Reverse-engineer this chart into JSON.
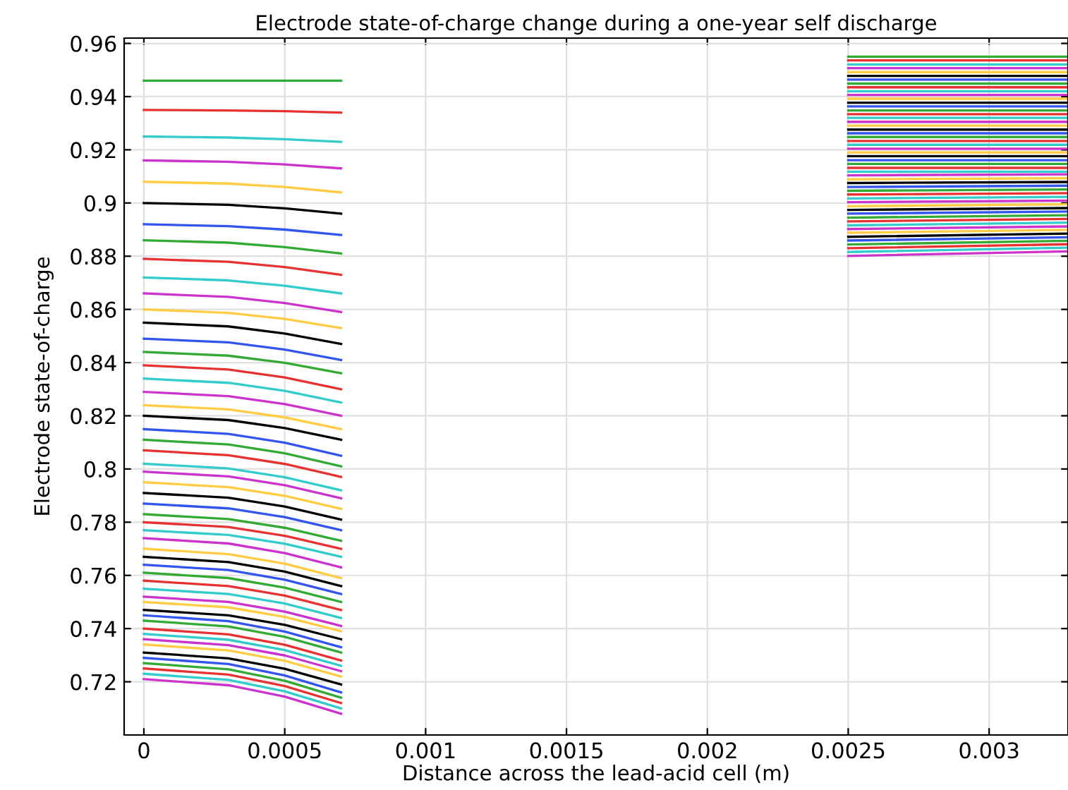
{
  "chart_data": {
    "type": "line",
    "title": "Electrode state-of-charge change during a one-year self discharge",
    "xlabel": "Distance across the lead-acid cell (m)",
    "ylabel": "Electrode state-of-charge",
    "x": [
      0,
      0.0003,
      0.0005,
      0.0007,
      0.0016,
      0.0025,
      0.00328
    ],
    "xlim": [
      -7e-05,
      0.00328
    ],
    "xticks": [
      0,
      0.0005,
      0.001,
      0.0015,
      0.002,
      0.0025,
      0.003
    ],
    "ylim": [
      0.7,
      0.962
    ],
    "yticks": [
      0.72,
      0.74,
      0.76,
      0.78,
      0.8,
      0.82,
      0.84,
      0.86,
      0.88,
      0.9,
      0.92,
      0.94,
      0.96
    ],
    "grid": true,
    "marker": "none",
    "line_style": "solid",
    "series": [
      {
        "color": "#33aa33",
        "values": [
          0.946,
          0.946,
          0.946,
          0.946,
          null,
          0.955,
          0.955
        ]
      },
      {
        "color": "#e83232",
        "values": [
          0.935,
          0.9348,
          0.9345,
          0.934,
          null,
          0.9536,
          0.9536
        ]
      },
      {
        "color": "#33cccc",
        "values": [
          0.925,
          0.9246,
          0.924,
          0.923,
          null,
          0.9521,
          0.9521
        ]
      },
      {
        "color": "#cc33cc",
        "values": [
          0.916,
          0.9155,
          0.9145,
          0.913,
          null,
          0.9507,
          0.9507
        ]
      },
      {
        "color": "#ffcc44",
        "values": [
          0.908,
          0.9073,
          0.906,
          0.904,
          null,
          0.9492,
          0.9492
        ]
      },
      {
        "color": "#000000",
        "values": [
          0.9,
          0.8993,
          0.898,
          0.896,
          null,
          0.9478,
          0.9478
        ]
      },
      {
        "color": "#3355ee",
        "values": [
          0.892,
          0.8913,
          0.89,
          0.888,
          null,
          0.9464,
          0.9464
        ]
      },
      {
        "color": "#33aa33",
        "values": [
          0.886,
          0.8851,
          0.8834,
          0.881,
          null,
          0.9449,
          0.9449
        ]
      },
      {
        "color": "#e83232",
        "values": [
          0.879,
          0.8779,
          0.8759,
          0.873,
          null,
          0.9435,
          0.9435
        ]
      },
      {
        "color": "#33cccc",
        "values": [
          0.872,
          0.8709,
          0.8689,
          0.866,
          null,
          0.942,
          0.942
        ]
      },
      {
        "color": "#cc33cc",
        "values": [
          0.866,
          0.8647,
          0.8624,
          0.859,
          null,
          0.9406,
          0.9406
        ]
      },
      {
        "color": "#ffcc44",
        "values": [
          0.86,
          0.8587,
          0.8564,
          0.853,
          null,
          0.9392,
          0.9392
        ]
      },
      {
        "color": "#000000",
        "values": [
          0.855,
          0.8536,
          0.8509,
          0.847,
          null,
          0.9377,
          0.9377
        ]
      },
      {
        "color": "#3355ee",
        "values": [
          0.849,
          0.8476,
          0.8449,
          0.841,
          null,
          0.9363,
          0.9363
        ]
      },
      {
        "color": "#33aa33",
        "values": [
          0.844,
          0.8426,
          0.8399,
          0.836,
          null,
          0.9348,
          0.9348
        ]
      },
      {
        "color": "#e83232",
        "values": [
          0.839,
          0.8374,
          0.8344,
          0.83,
          null,
          0.9334,
          0.9334
        ]
      },
      {
        "color": "#33cccc",
        "values": [
          0.834,
          0.8324,
          0.8294,
          0.825,
          null,
          0.932,
          0.932
        ]
      },
      {
        "color": "#cc33cc",
        "values": [
          0.829,
          0.8274,
          0.8244,
          0.82,
          null,
          0.9305,
          0.9305
        ]
      },
      {
        "color": "#ffcc44",
        "values": [
          0.824,
          0.8224,
          0.8194,
          0.815,
          null,
          0.9291,
          0.9291
        ]
      },
      {
        "color": "#000000",
        "values": [
          0.82,
          0.8184,
          0.8154,
          0.811,
          null,
          0.9276,
          0.9276
        ]
      },
      {
        "color": "#3355ee",
        "values": [
          0.815,
          0.8132,
          0.8099,
          0.805,
          null,
          0.9262,
          0.9262
        ]
      },
      {
        "color": "#33aa33",
        "values": [
          0.811,
          0.8092,
          0.8059,
          0.801,
          null,
          0.9248,
          0.9248
        ]
      },
      {
        "color": "#e83232",
        "values": [
          0.807,
          0.8052,
          0.8019,
          0.797,
          null,
          0.9233,
          0.9233
        ]
      },
      {
        "color": "#33cccc",
        "values": [
          0.802,
          0.8002,
          0.7969,
          0.792,
          null,
          0.9219,
          0.9219
        ]
      },
      {
        "color": "#cc33cc",
        "values": [
          0.799,
          0.7972,
          0.7939,
          0.789,
          null,
          0.9204,
          0.9204
        ]
      },
      {
        "color": "#ffcc44",
        "values": [
          0.795,
          0.7932,
          0.7899,
          0.785,
          null,
          0.919,
          0.919
        ]
      },
      {
        "color": "#000000",
        "values": [
          0.791,
          0.7892,
          0.7859,
          0.781,
          null,
          0.9176,
          0.9176
        ]
      },
      {
        "color": "#3355ee",
        "values": [
          0.787,
          0.7852,
          0.7819,
          0.777,
          null,
          0.9161,
          0.9161
        ]
      },
      {
        "color": "#33aa33",
        "values": [
          0.783,
          0.7812,
          0.7779,
          0.773,
          null,
          0.9147,
          0.9147
        ]
      },
      {
        "color": "#e83232",
        "values": [
          0.78,
          0.7782,
          0.7749,
          0.77,
          null,
          0.9132,
          0.9132
        ]
      },
      {
        "color": "#33cccc",
        "values": [
          0.777,
          0.7752,
          0.7719,
          0.767,
          null,
          0.9118,
          0.9118
        ]
      },
      {
        "color": "#cc33cc",
        "values": [
          0.774,
          0.772,
          0.7684,
          0.763,
          null,
          0.9104,
          0.9108
        ]
      },
      {
        "color": "#ffcc44",
        "values": [
          0.77,
          0.768,
          0.7644,
          0.759,
          null,
          0.9089,
          0.9093
        ]
      },
      {
        "color": "#000000",
        "values": [
          0.767,
          0.765,
          0.7614,
          0.756,
          null,
          0.9075,
          0.9079
        ]
      },
      {
        "color": "#3355ee",
        "values": [
          0.764,
          0.762,
          0.7584,
          0.753,
          null,
          0.906,
          0.9065
        ]
      },
      {
        "color": "#33aa33",
        "values": [
          0.761,
          0.759,
          0.7554,
          0.75,
          null,
          0.9046,
          0.9051
        ]
      },
      {
        "color": "#e83232",
        "values": [
          0.758,
          0.756,
          0.7524,
          0.747,
          null,
          0.9032,
          0.9037
        ]
      },
      {
        "color": "#33cccc",
        "values": [
          0.755,
          0.753,
          0.7494,
          0.744,
          null,
          0.9017,
          0.9023
        ]
      },
      {
        "color": "#cc33cc",
        "values": [
          0.752,
          0.75,
          0.7464,
          0.741,
          null,
          0.9003,
          0.9009
        ]
      },
      {
        "color": "#ffcc44",
        "values": [
          0.75,
          0.748,
          0.7444,
          0.739,
          null,
          0.8988,
          0.8995
        ]
      },
      {
        "color": "#000000",
        "values": [
          0.747,
          0.745,
          0.7414,
          0.736,
          null,
          0.8974,
          0.8981
        ]
      },
      {
        "color": "#3355ee",
        "values": [
          0.745,
          0.7428,
          0.7389,
          0.733,
          null,
          0.896,
          0.8968
        ]
      },
      {
        "color": "#33aa33",
        "values": [
          0.743,
          0.7408,
          0.7369,
          0.731,
          null,
          0.8945,
          0.8954
        ]
      },
      {
        "color": "#e83232",
        "values": [
          0.74,
          0.7378,
          0.7339,
          0.728,
          null,
          0.8931,
          0.894
        ]
      },
      {
        "color": "#33cccc",
        "values": [
          0.738,
          0.7358,
          0.7319,
          0.726,
          null,
          0.8916,
          0.8926
        ]
      },
      {
        "color": "#cc33cc",
        "values": [
          0.736,
          0.7338,
          0.7299,
          0.724,
          null,
          0.8902,
          0.8912
        ]
      },
      {
        "color": "#ffcc44",
        "values": [
          0.734,
          0.7318,
          0.7279,
          0.722,
          null,
          0.8888,
          0.8899
        ]
      },
      {
        "color": "#000000",
        "values": [
          0.731,
          0.7288,
          0.7249,
          0.719,
          null,
          0.8873,
          0.8885
        ]
      },
      {
        "color": "#3355ee",
        "values": [
          0.729,
          0.7267,
          0.7224,
          0.716,
          null,
          0.8859,
          0.8871
        ]
      },
      {
        "color": "#33aa33",
        "values": [
          0.727,
          0.7247,
          0.7204,
          0.714,
          null,
          0.8844,
          0.8858
        ]
      },
      {
        "color": "#e83232",
        "values": [
          0.725,
          0.7227,
          0.7184,
          0.712,
          null,
          0.883,
          0.8845
        ]
      },
      {
        "color": "#33cccc",
        "values": [
          0.723,
          0.7207,
          0.7164,
          0.71,
          null,
          0.8816,
          0.8832
        ]
      },
      {
        "color": "#cc33cc",
        "values": [
          0.721,
          0.7187,
          0.7144,
          0.708,
          null,
          0.8801,
          0.8818
        ]
      }
    ]
  }
}
